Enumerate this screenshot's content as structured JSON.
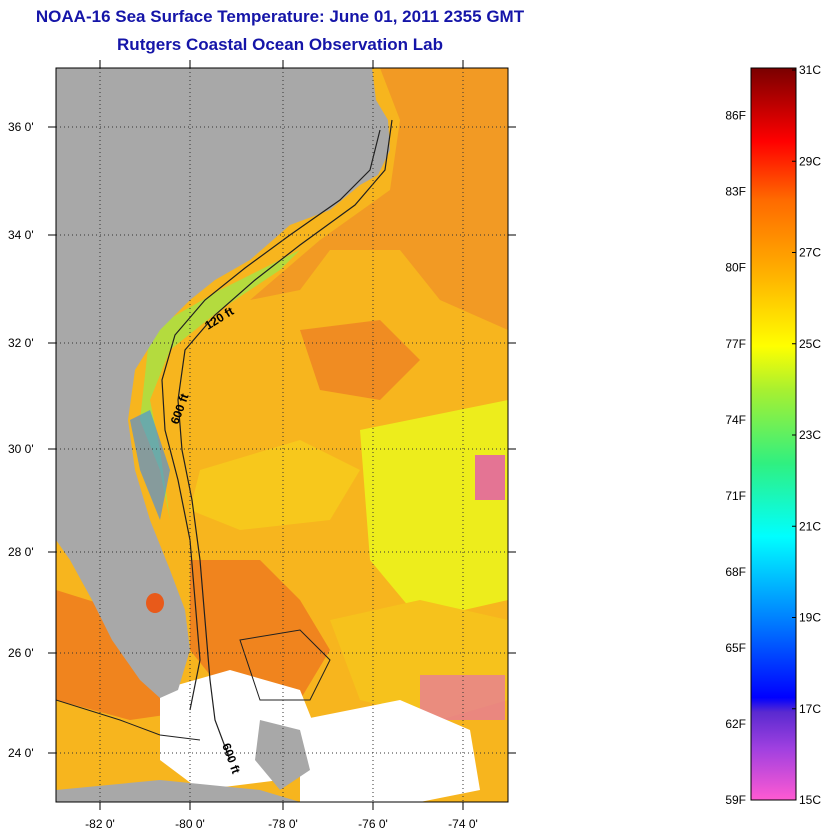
{
  "title": {
    "line1": "NOAA-16 Sea Surface Temperature:  June 01, 2011 2355 GMT",
    "line2": "Rutgers Coastal Ocean Observation Lab"
  },
  "map": {
    "lon_ticks": [
      "-82 0'",
      "-80 0'",
      "-78 0'",
      "-76 0'",
      "-74 0'"
    ],
    "lat_ticks": [
      "36 0'",
      "34 0'",
      "32 0'",
      "30 0'",
      "28 0'",
      "26 0'",
      "24 0'"
    ],
    "contour_labels": [
      "120 ft",
      "600 ft",
      "600 ft"
    ],
    "colors": {
      "land": "#a8a8a8",
      "no_data": "#ffffff",
      "warm_ocean": "#f28a1e",
      "mid_ocean": "#f5c21a",
      "cool_ocean": "#ecec1c"
    }
  },
  "colorbar": {
    "celsius": [
      "31C",
      "29C",
      "27C",
      "25C",
      "23C",
      "21C",
      "19C",
      "17C",
      "15C"
    ],
    "fahrenheit": [
      "86F",
      "83F",
      "80F",
      "77F",
      "74F",
      "71F",
      "68F",
      "65F",
      "62F",
      "59F"
    ],
    "celsius_values": [
      31,
      29,
      27,
      25,
      23,
      21,
      19,
      17,
      15
    ],
    "fahrenheit_values": [
      86,
      83,
      80,
      77,
      74,
      71,
      68,
      65,
      62,
      59
    ],
    "min_c": 15,
    "max_c": 31
  }
}
